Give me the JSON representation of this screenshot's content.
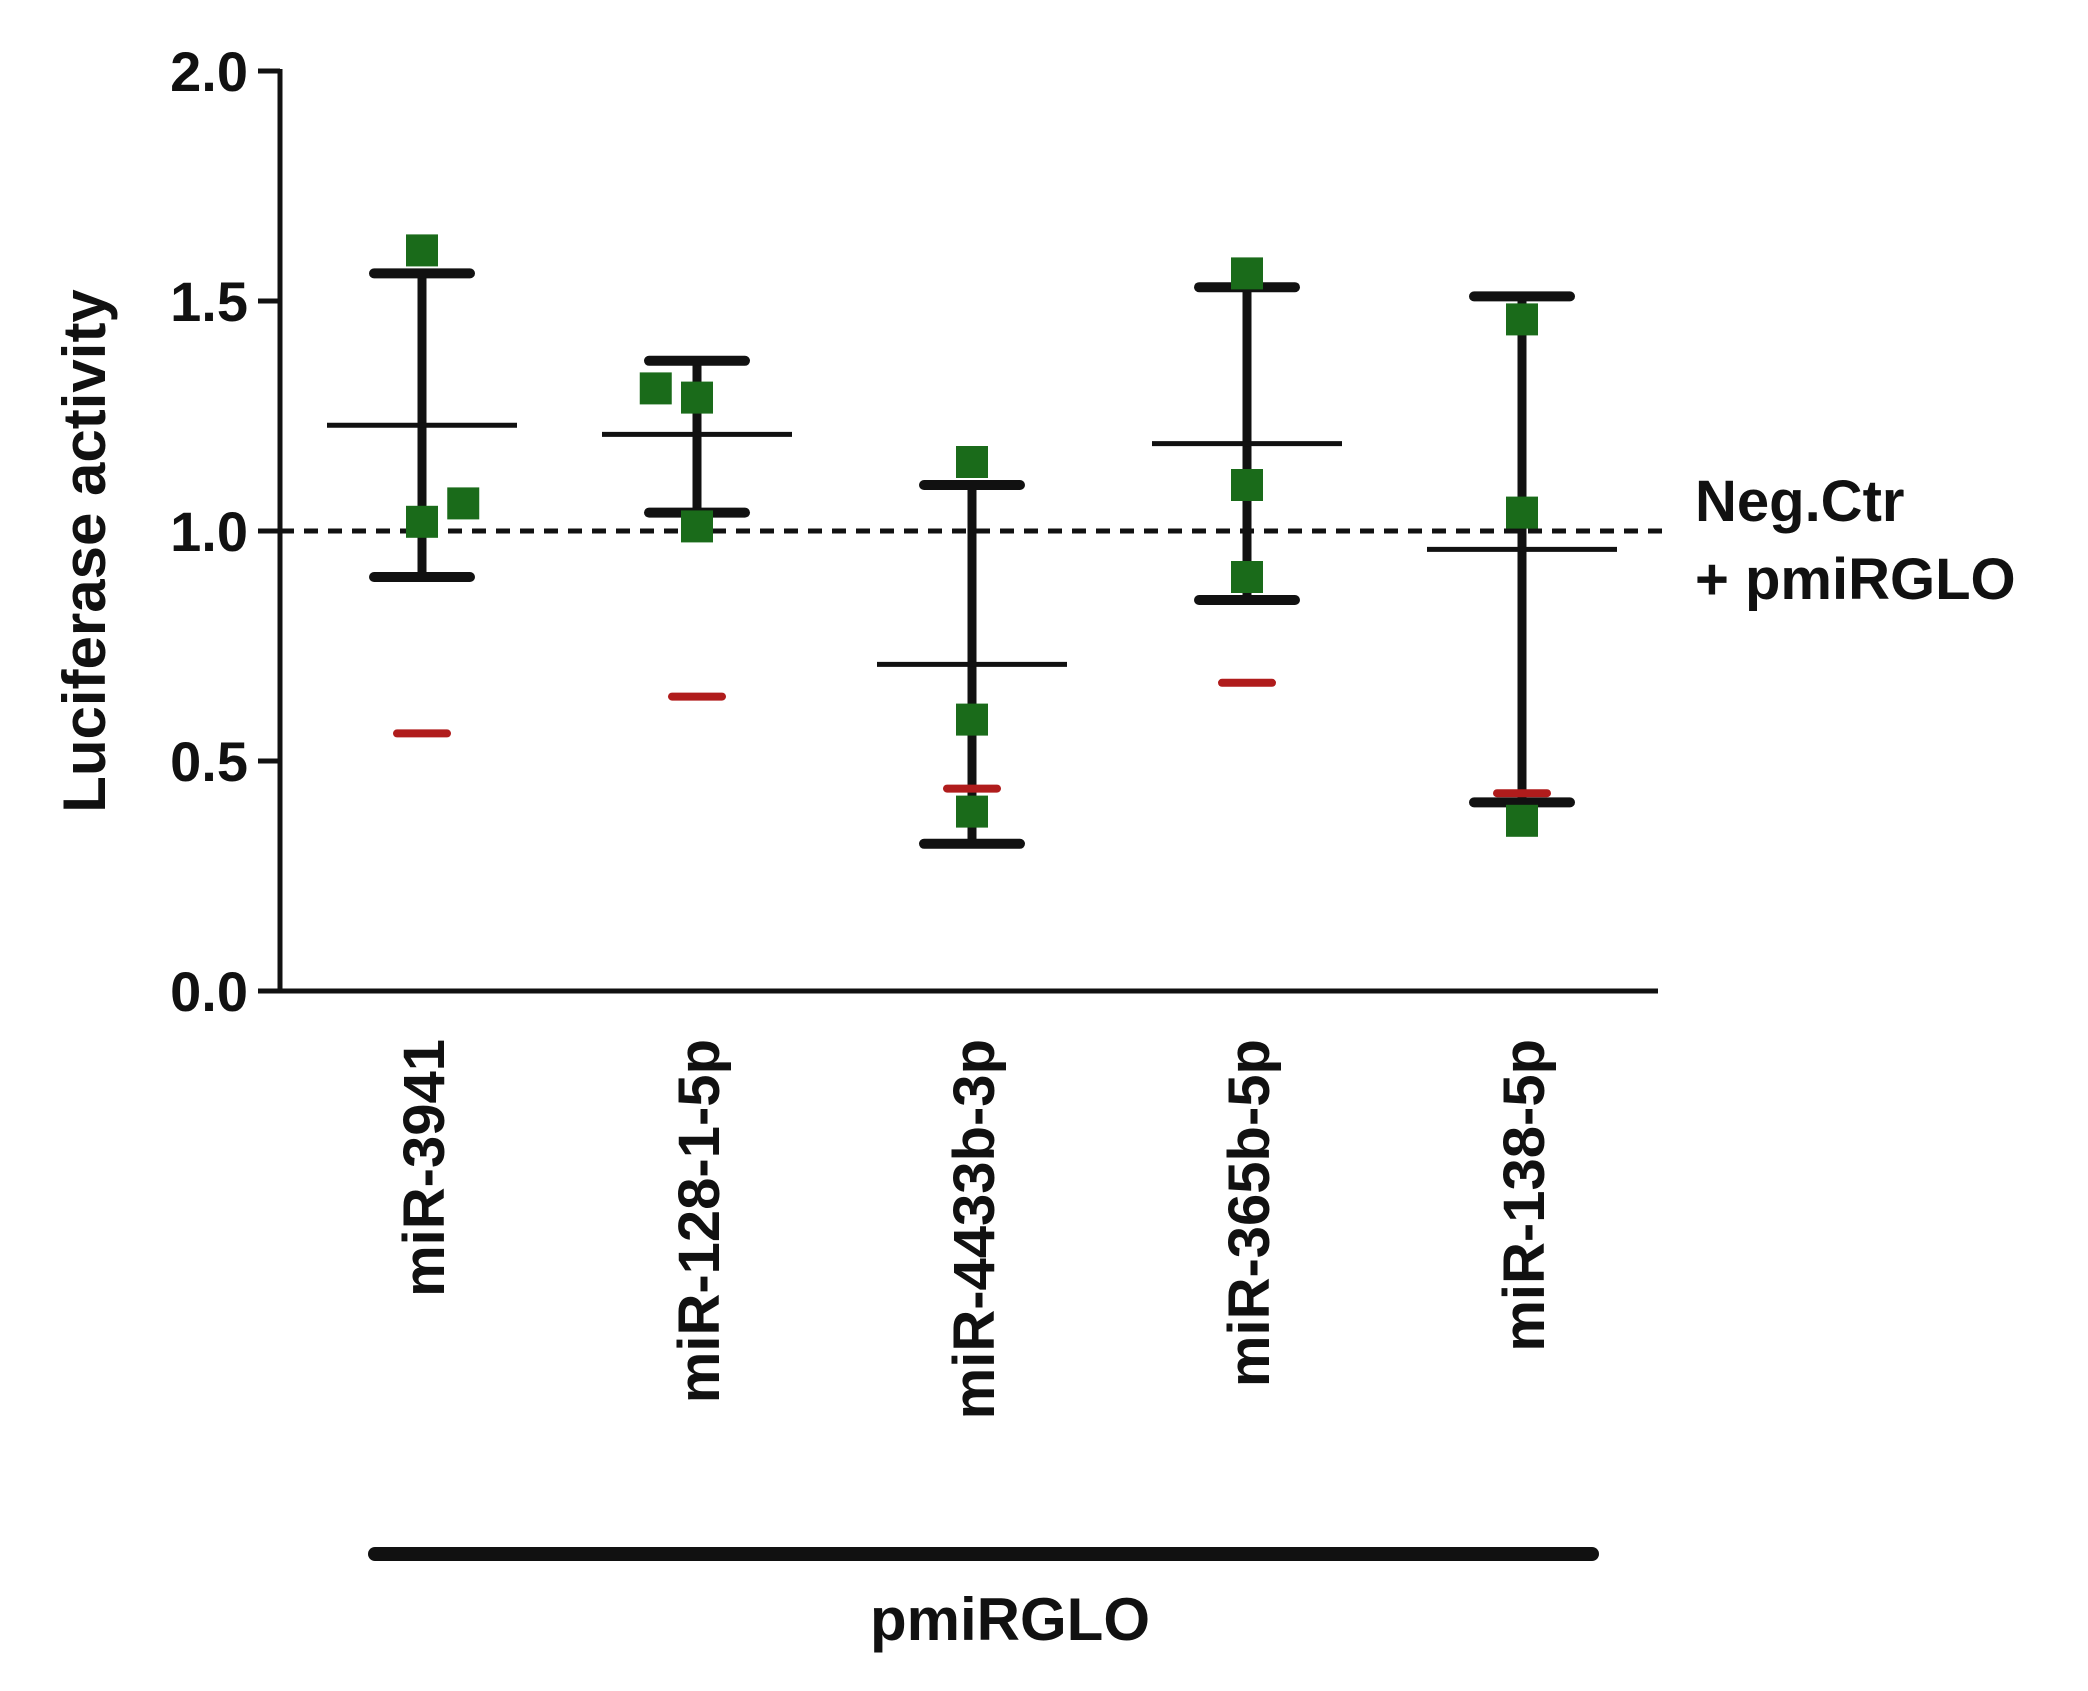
{
  "chart_data": {
    "type": "scatter",
    "title": "",
    "ylabel": "Luciferase activity",
    "xlabel": "",
    "ylim": [
      0,
      2.0
    ],
    "yticks": [
      0.0,
      0.5,
      1.0,
      1.5,
      2.0
    ],
    "ytick_labels": [
      "0.0",
      "0.5",
      "1.0",
      "1.5",
      "2.0"
    ],
    "categories": [
      "miR-3941",
      "miR-128-1-5p",
      "miR-4433b-3p",
      "miR-365b-5p",
      "miR-138-5p"
    ],
    "points": [
      [
        {
          "value": 1.61,
          "offset": 0.0
        },
        {
          "value": 1.02,
          "offset": 0.0
        },
        {
          "value": 1.06,
          "offset": 0.15
        }
      ],
      [
        {
          "value": 1.31,
          "offset": -0.15
        },
        {
          "value": 1.29,
          "offset": 0.0
        },
        {
          "value": 1.01,
          "offset": 0.0
        }
      ],
      [
        {
          "value": 1.15,
          "offset": 0.0
        },
        {
          "value": 0.59,
          "offset": 0.0
        },
        {
          "value": 0.39,
          "offset": 0.0
        }
      ],
      [
        {
          "value": 1.56,
          "offset": 0.0
        },
        {
          "value": 1.1,
          "offset": 0.0
        },
        {
          "value": 0.9,
          "offset": 0.0
        }
      ],
      [
        {
          "value": 1.46,
          "offset": 0.0
        },
        {
          "value": 1.04,
          "offset": 0.0
        },
        {
          "value": 0.37,
          "offset": 0.0
        }
      ]
    ],
    "mean": [
      1.23,
      1.21,
      0.71,
      1.19,
      0.96
    ],
    "sd_upper": [
      1.56,
      1.37,
      1.1,
      1.53,
      1.51
    ],
    "sd_lower": [
      0.9,
      1.04,
      0.32,
      0.85,
      0.41
    ],
    "red_marker": [
      0.56,
      0.64,
      0.44,
      0.67,
      0.43
    ],
    "reference_line": {
      "value": 1.0,
      "label_line1": "Neg.Ctr",
      "label_line2": "+ pmiRGLO"
    },
    "group_label": "pmiRGLO",
    "colors": {
      "points": "#1a6b1a",
      "bars": "#111111",
      "red_marker": "#b01c1c",
      "axis": "#111111"
    }
  }
}
